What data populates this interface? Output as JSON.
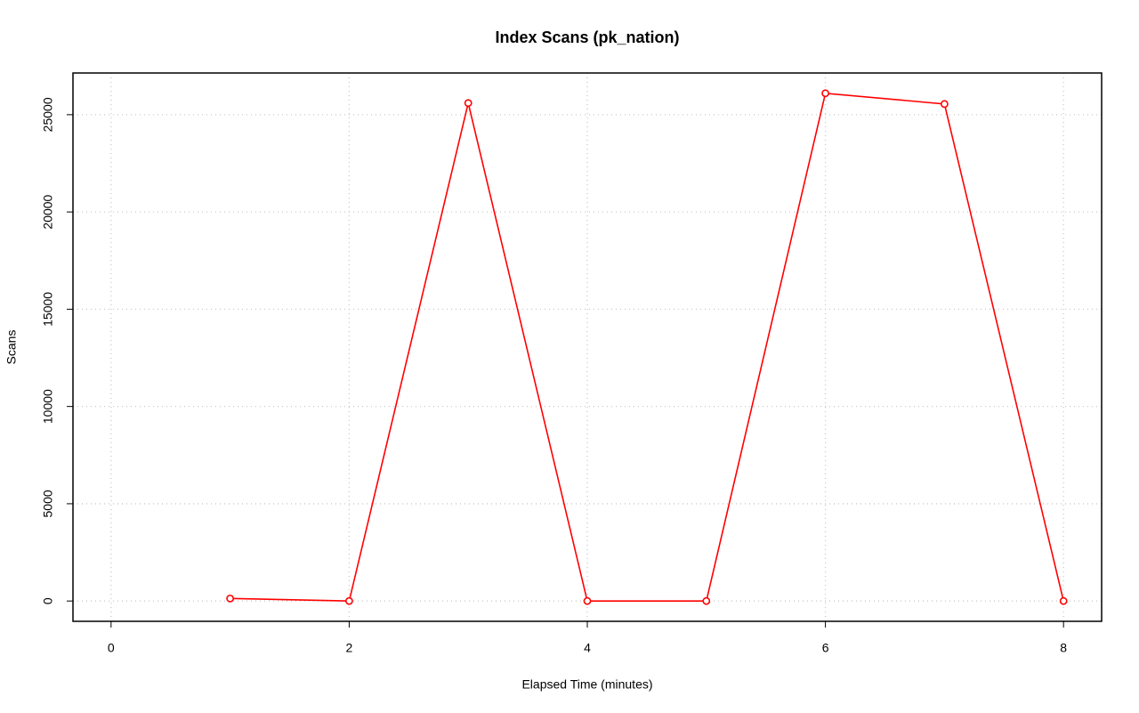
{
  "chart_data": {
    "type": "line",
    "title": "Index Scans (pk_nation)",
    "x_label": "Elapsed Time (minutes)",
    "y_label": "Scans",
    "x": [
      1,
      2,
      3,
      4,
      5,
      6,
      7,
      8
    ],
    "series": [
      {
        "name": "pk_nation",
        "color": "#ff0000",
        "values": [
          130,
          0,
          25600,
          0,
          0,
          26100,
          25550,
          0
        ]
      }
    ],
    "xlim": [
      -0.32,
      8.32
    ],
    "xticks": [
      0,
      2,
      4,
      6,
      8
    ],
    "ylim": [
      -1044,
      27144
    ],
    "yticks": [
      0,
      5000,
      10000,
      15000,
      20000,
      25000
    ],
    "grid": true
  }
}
